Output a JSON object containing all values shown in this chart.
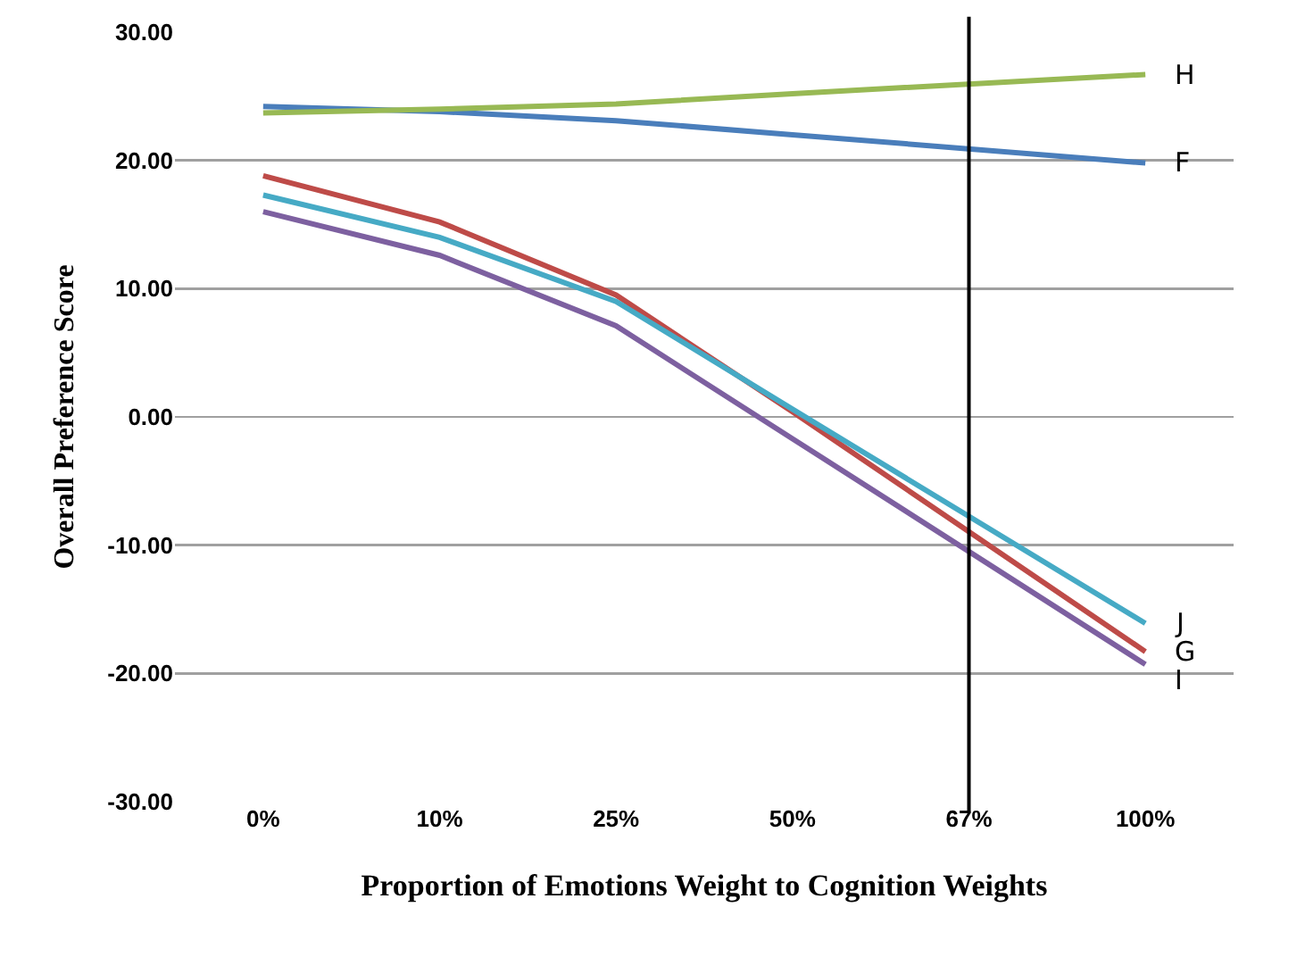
{
  "chart_data": {
    "type": "line",
    "xlabel": "Proportion of Emotions Weight to Cognition Weights",
    "ylabel": "Overall Preference Score",
    "categories": [
      "0%",
      "10%",
      "25%",
      "50%",
      "67%",
      "100%"
    ],
    "series": [
      {
        "name": "F",
        "color": "#4a7ebb",
        "x": [
          "0%",
          "10%",
          "25%",
          "50%",
          "100%"
        ],
        "values": [
          24.2,
          23.8,
          23.1,
          22.0,
          19.8
        ]
      },
      {
        "name": "G",
        "color": "#be4b48",
        "x": [
          "0%",
          "10%",
          "25%",
          "50%",
          "100%"
        ],
        "values": [
          18.8,
          15.2,
          9.5,
          0.4,
          -18.3
        ]
      },
      {
        "name": "H",
        "color": "#98b954",
        "x": [
          "0%",
          "10%",
          "25%",
          "50%",
          "100%"
        ],
        "values": [
          23.7,
          24.0,
          24.4,
          25.2,
          26.7
        ]
      },
      {
        "name": "I",
        "color": "#7d60a0",
        "x": [
          "0%",
          "10%",
          "25%",
          "50%",
          "100%"
        ],
        "values": [
          16.0,
          12.6,
          7.1,
          -1.7,
          -19.3
        ]
      },
      {
        "name": "J",
        "color": "#46aac5",
        "x": [
          "0%",
          "10%",
          "25%",
          "50%",
          "100%"
        ],
        "values": [
          17.3,
          14.0,
          9.0,
          0.6,
          -16.1
        ]
      }
    ],
    "ylim": [
      -30,
      30
    ],
    "yticks": [
      {
        "value": -30,
        "label": "-30.00"
      },
      {
        "value": -20,
        "label": "-20.00"
      },
      {
        "value": -10,
        "label": "-10.00"
      },
      {
        "value": 0,
        "label": "0.00"
      },
      {
        "value": 10,
        "label": "10.00"
      },
      {
        "value": 20,
        "label": "20.00"
      },
      {
        "value": 30,
        "label": "30.00"
      }
    ],
    "ref_lines": [
      {
        "axis": "x",
        "value": "67%",
        "color": "#000000"
      }
    ],
    "grid": "y",
    "legend": false,
    "marker": "none",
    "line_style": "solid"
  }
}
